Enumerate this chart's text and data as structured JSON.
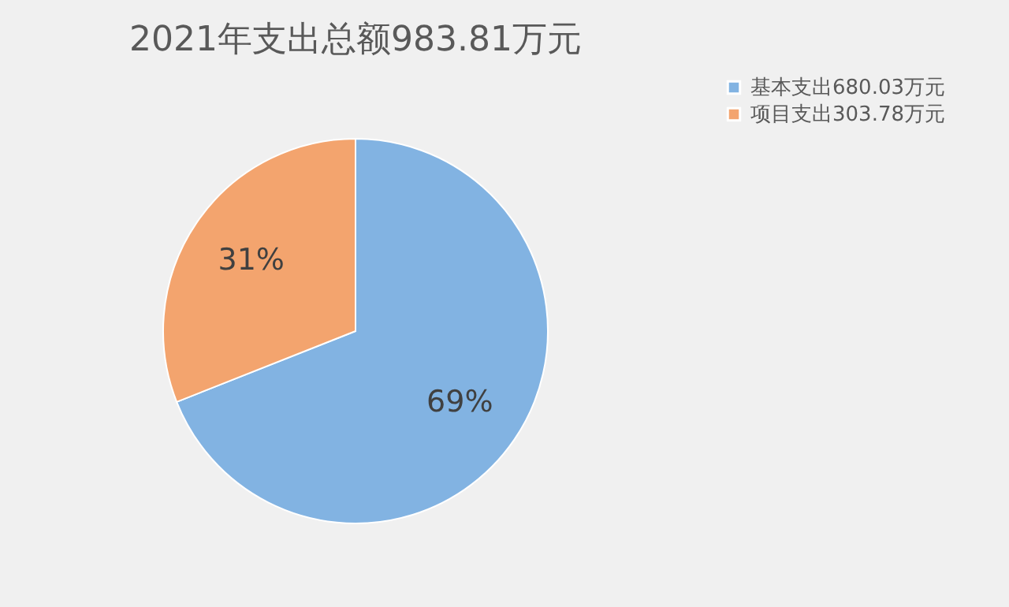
{
  "chart_data": {
    "type": "pie",
    "title": "2021年支出总额983.81万元",
    "categories": [
      "基本支出680.03万元",
      "项目支出303.78万元"
    ],
    "values": [
      69,
      31
    ],
    "colors": [
      "#82b3e2",
      "#f3a46e"
    ],
    "value_labels": [
      "69%",
      "31%"
    ],
    "legend": "right"
  }
}
